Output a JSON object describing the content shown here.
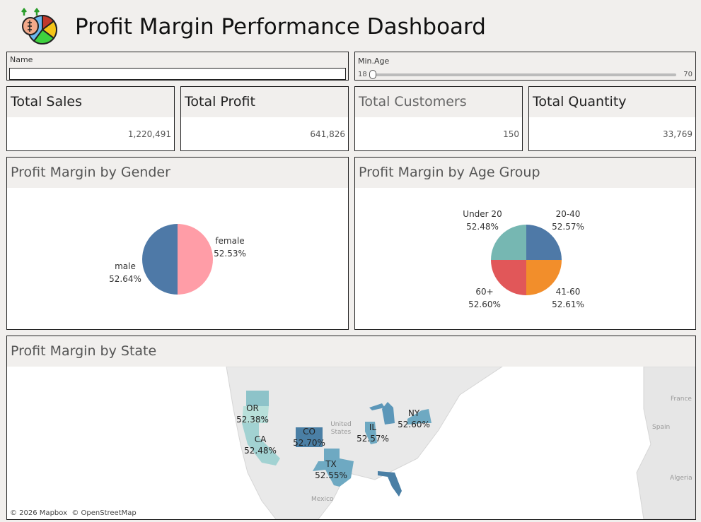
{
  "header": {
    "title": "Profit Margin Performance Dashboard",
    "logo": "money-bag-pie-chart-icon"
  },
  "filters": {
    "name": {
      "label": "Name",
      "value": "",
      "placeholder": ""
    },
    "min_age": {
      "label": "Min.Age",
      "min": "18",
      "max": "70",
      "current": 18
    }
  },
  "kpis": [
    {
      "title": "Total Sales",
      "value": "1,220,491"
    },
    {
      "title": "Total Profit",
      "value": "641,826"
    },
    {
      "title": "Total Customers",
      "value": "150"
    },
    {
      "title": "Total Quantity",
      "value": "33,769"
    }
  ],
  "gender_chart": {
    "title": "Profit Margin by Gender",
    "chart_data": {
      "type": "pie",
      "slices": [
        {
          "label": "female",
          "value": "52.53%",
          "color": "#ff9da7"
        },
        {
          "label": "male",
          "value": "52.64%",
          "color": "#4e79a7"
        }
      ]
    }
  },
  "age_chart": {
    "title": "Profit Margin by Age Group",
    "chart_data": {
      "type": "pie",
      "slices": [
        {
          "label": "20-40",
          "value": "52.57%",
          "color": "#4e79a7"
        },
        {
          "label": "41-60",
          "value": "52.61%",
          "color": "#f28e2b"
        },
        {
          "label": "60+",
          "value": "52.60%",
          "color": "#e15759"
        },
        {
          "label": "Under 20",
          "value": "52.48%",
          "color": "#76b7b2"
        }
      ]
    }
  },
  "state_map": {
    "title": "Profit Margin by State",
    "states": [
      {
        "code": "OR",
        "value": "52.38%"
      },
      {
        "code": "CA",
        "value": "52.48%"
      },
      {
        "code": "CO",
        "value": "52.70%"
      },
      {
        "code": "TX",
        "value": "52.55%"
      },
      {
        "code": "IL",
        "value": "52.57%"
      },
      {
        "code": "NY",
        "value": "52.60%"
      }
    ],
    "place_labels": {
      "us": "United States",
      "mexico": "Mexico",
      "france": "France",
      "spain": "Spain",
      "algeria": "Algeria"
    },
    "attribution": "© 2026 Mapbox  © OpenStreetMap"
  }
}
